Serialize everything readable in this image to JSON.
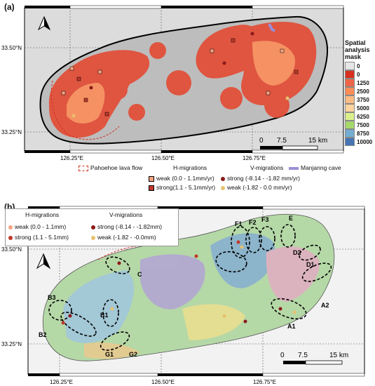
{
  "panel_a": {
    "label": "(a)",
    "lat_labels": [
      "33.50°N",
      "33.25°N"
    ],
    "lon_labels": [
      "126.25°E",
      "126.50°E",
      "126.75°E"
    ],
    "scale": {
      "ticks": [
        "0",
        "7.5",
        "15 km"
      ]
    },
    "mask_legend": {
      "title_lines": [
        "Spatial",
        "analysis",
        "mask"
      ],
      "entries": [
        {
          "label": "0",
          "color": "#e6e6e6"
        },
        {
          "label": "0",
          "color": "#d7301f"
        },
        {
          "label": "1250",
          "color": "#ef6548"
        },
        {
          "label": "2500",
          "color": "#fc8d59"
        },
        {
          "label": "3750",
          "color": "#fdbb84"
        },
        {
          "label": "5000",
          "color": "#fdd49e"
        },
        {
          "label": "6250",
          "color": "#d9ef8b"
        },
        {
          "label": "7500",
          "color": "#a6d96a"
        },
        {
          "label": "8750",
          "color": "#74add1"
        },
        {
          "label": "10000",
          "color": "#4575b4"
        }
      ]
    },
    "legend": {
      "lava_flow": "Pahoehoe lava flow",
      "h_title": "H-migrations",
      "h_weak": "weak (0.0 - 1.1mm/yr)",
      "h_strong": "strong(1.1 - 5.1mm/yr)",
      "v_title": "V-migrations",
      "v_strong": "strong (-8.14 - -1.82 mm/yr)",
      "v_weak": "weak (-1.82 - 0.0 mm/yr)",
      "cave": "Manjanng cave"
    },
    "colors": {
      "weak_h": "#f4a582",
      "strong_h": "#c0392b",
      "strong_v": "#8b1a1a",
      "weak_v": "#e8c170",
      "cave": "#9b8fd6"
    }
  },
  "panel_b": {
    "label": "(b)",
    "lat_labels": [
      "33.50°N",
      "33.25°N"
    ],
    "lon_labels": [
      "126.25°E",
      "126.50°E",
      "126.75°E"
    ],
    "scale": {
      "ticks": [
        "0",
        "7.5",
        "15 km"
      ]
    },
    "legend": {
      "h_title": "H-migrations",
      "h_weak": "weak (0.0 - 1.1mm)",
      "h_strong": "strong (1.1 - 5.1mm)",
      "v_title": "V-migrations",
      "v_strong": "strong (-8.14 - -1.82mm)",
      "v_weak": "weak (-1.82 - -0.0mm)"
    },
    "zones": [
      "F1",
      "F2",
      "F3",
      "E",
      "D2",
      "D1",
      "C",
      "B3",
      "B1",
      "B2",
      "G1",
      "G2",
      "A2",
      "A1"
    ]
  }
}
